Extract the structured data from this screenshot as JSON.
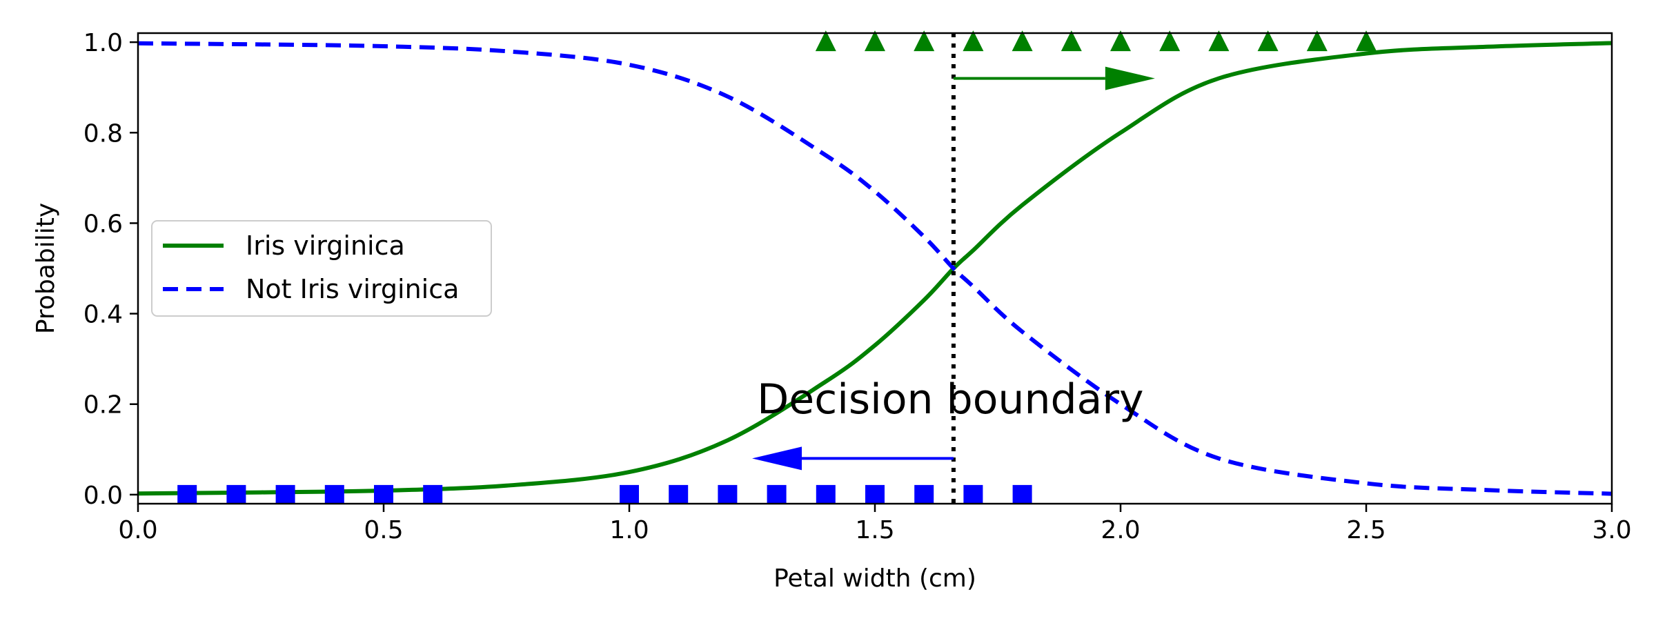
{
  "chart_data": {
    "type": "line",
    "xlabel": "Petal width (cm)",
    "ylabel": "Probability",
    "xlim": [
      0.0,
      3.0
    ],
    "ylim": [
      -0.02,
      1.02
    ],
    "x_ticks": [
      "0.0",
      "0.5",
      "1.0",
      "1.5",
      "2.0",
      "2.5",
      "3.0"
    ],
    "y_ticks": [
      "0.0",
      "0.2",
      "0.4",
      "0.6",
      "0.8",
      "1.0"
    ],
    "grid": false,
    "legend_position": "center-left",
    "series": [
      {
        "name": "Iris virginica",
        "style": "solid",
        "color": "#008000",
        "x": [
          0.0,
          0.25,
          0.5,
          0.75,
          1.0,
          1.2,
          1.4,
          1.5,
          1.6,
          1.66,
          1.7,
          1.8,
          2.0,
          2.2,
          2.5,
          2.75,
          3.0
        ],
        "y": [
          0.0025,
          0.005,
          0.009,
          0.02,
          0.05,
          0.12,
          0.25,
          0.33,
          0.43,
          0.5,
          0.54,
          0.64,
          0.8,
          0.92,
          0.975,
          0.99,
          0.998
        ]
      },
      {
        "name": "Not Iris virginica",
        "style": "dashed",
        "color": "#0000ff",
        "x": [
          0.0,
          0.25,
          0.5,
          0.75,
          1.0,
          1.2,
          1.4,
          1.5,
          1.6,
          1.66,
          1.7,
          1.8,
          2.0,
          2.2,
          2.5,
          2.75,
          3.0
        ],
        "y": [
          0.9975,
          0.995,
          0.991,
          0.98,
          0.95,
          0.88,
          0.75,
          0.67,
          0.57,
          0.5,
          0.46,
          0.36,
          0.2,
          0.08,
          0.025,
          0.01,
          0.002
        ]
      }
    ],
    "scatter": [
      {
        "name": "",
        "marker": "triangle",
        "color": "#008000",
        "x": [
          1.4,
          1.5,
          1.6,
          1.7,
          1.8,
          1.9,
          2.0,
          2.1,
          2.2,
          2.3,
          2.4,
          2.5
        ],
        "y": [
          1,
          1,
          1,
          1,
          1,
          1,
          1,
          1,
          1,
          1,
          1,
          1
        ]
      },
      {
        "name": "",
        "marker": "square",
        "color": "#0000ff",
        "x": [
          0.1,
          0.2,
          0.3,
          0.4,
          0.5,
          0.6,
          1.0,
          1.1,
          1.2,
          1.3,
          1.4,
          1.5,
          1.6,
          1.7,
          1.8
        ],
        "y": [
          0,
          0,
          0,
          0,
          0,
          0,
          0,
          0,
          0,
          0,
          0,
          0,
          0,
          0,
          0
        ]
      }
    ],
    "decision_boundary": {
      "x": 1.66,
      "style": "dotted",
      "color": "#000000"
    },
    "arrows": [
      {
        "color": "#008000",
        "x_start": 1.66,
        "x_end": 2.07,
        "y": 0.92
      },
      {
        "color": "#0000ff",
        "x_start": 1.66,
        "x_end": 1.25,
        "y": 0.08
      }
    ],
    "annotation": {
      "text": "Decision  boundary",
      "x": 1.26,
      "y": 0.18
    }
  }
}
